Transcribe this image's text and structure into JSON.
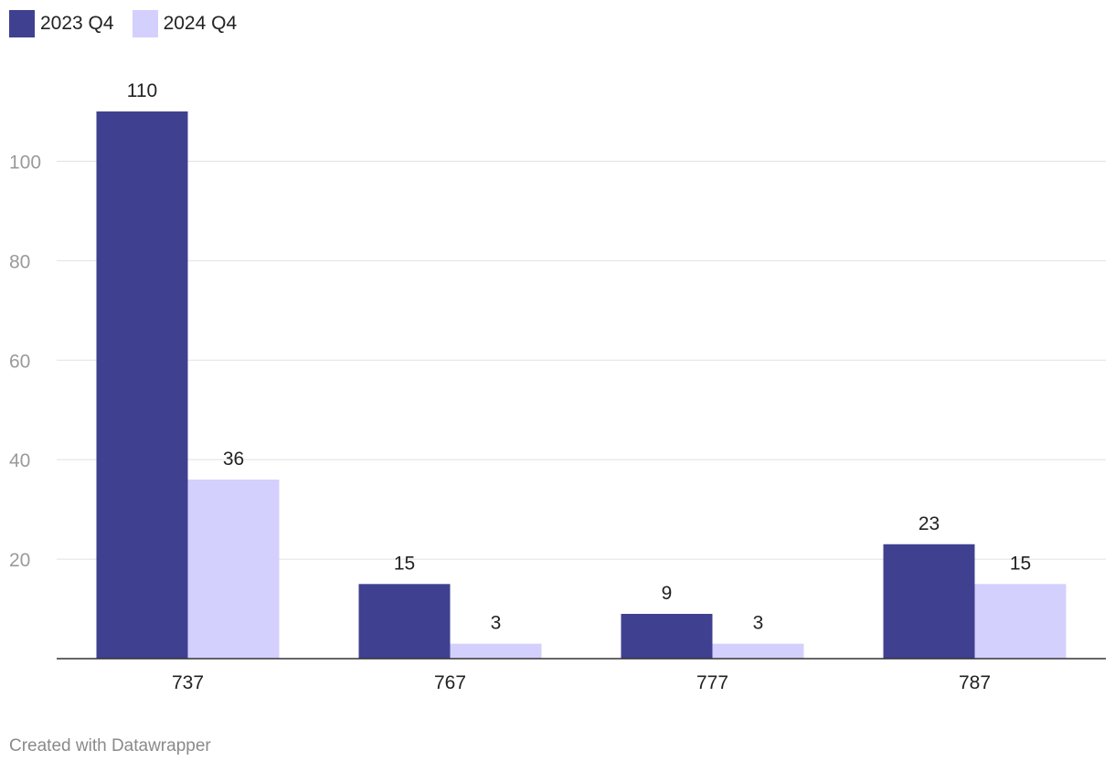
{
  "chart_data": {
    "type": "bar",
    "title": "",
    "xlabel": "",
    "ylabel": "",
    "categories": [
      "737",
      "767",
      "777",
      "787"
    ],
    "series": [
      {
        "name": "2023 Q4",
        "values": [
          110,
          15,
          9,
          23
        ],
        "color": "#404091"
      },
      {
        "name": "2024 Q4",
        "values": [
          36,
          3,
          3,
          15
        ],
        "color": "#d3d0fe"
      }
    ],
    "yticks": [
      "20",
      "40",
      "60",
      "80",
      "100"
    ],
    "ylim": [
      0,
      110
    ],
    "grid": true,
    "legend": "top-left"
  },
  "footer": {
    "credit": "Created with Datawrapper"
  }
}
